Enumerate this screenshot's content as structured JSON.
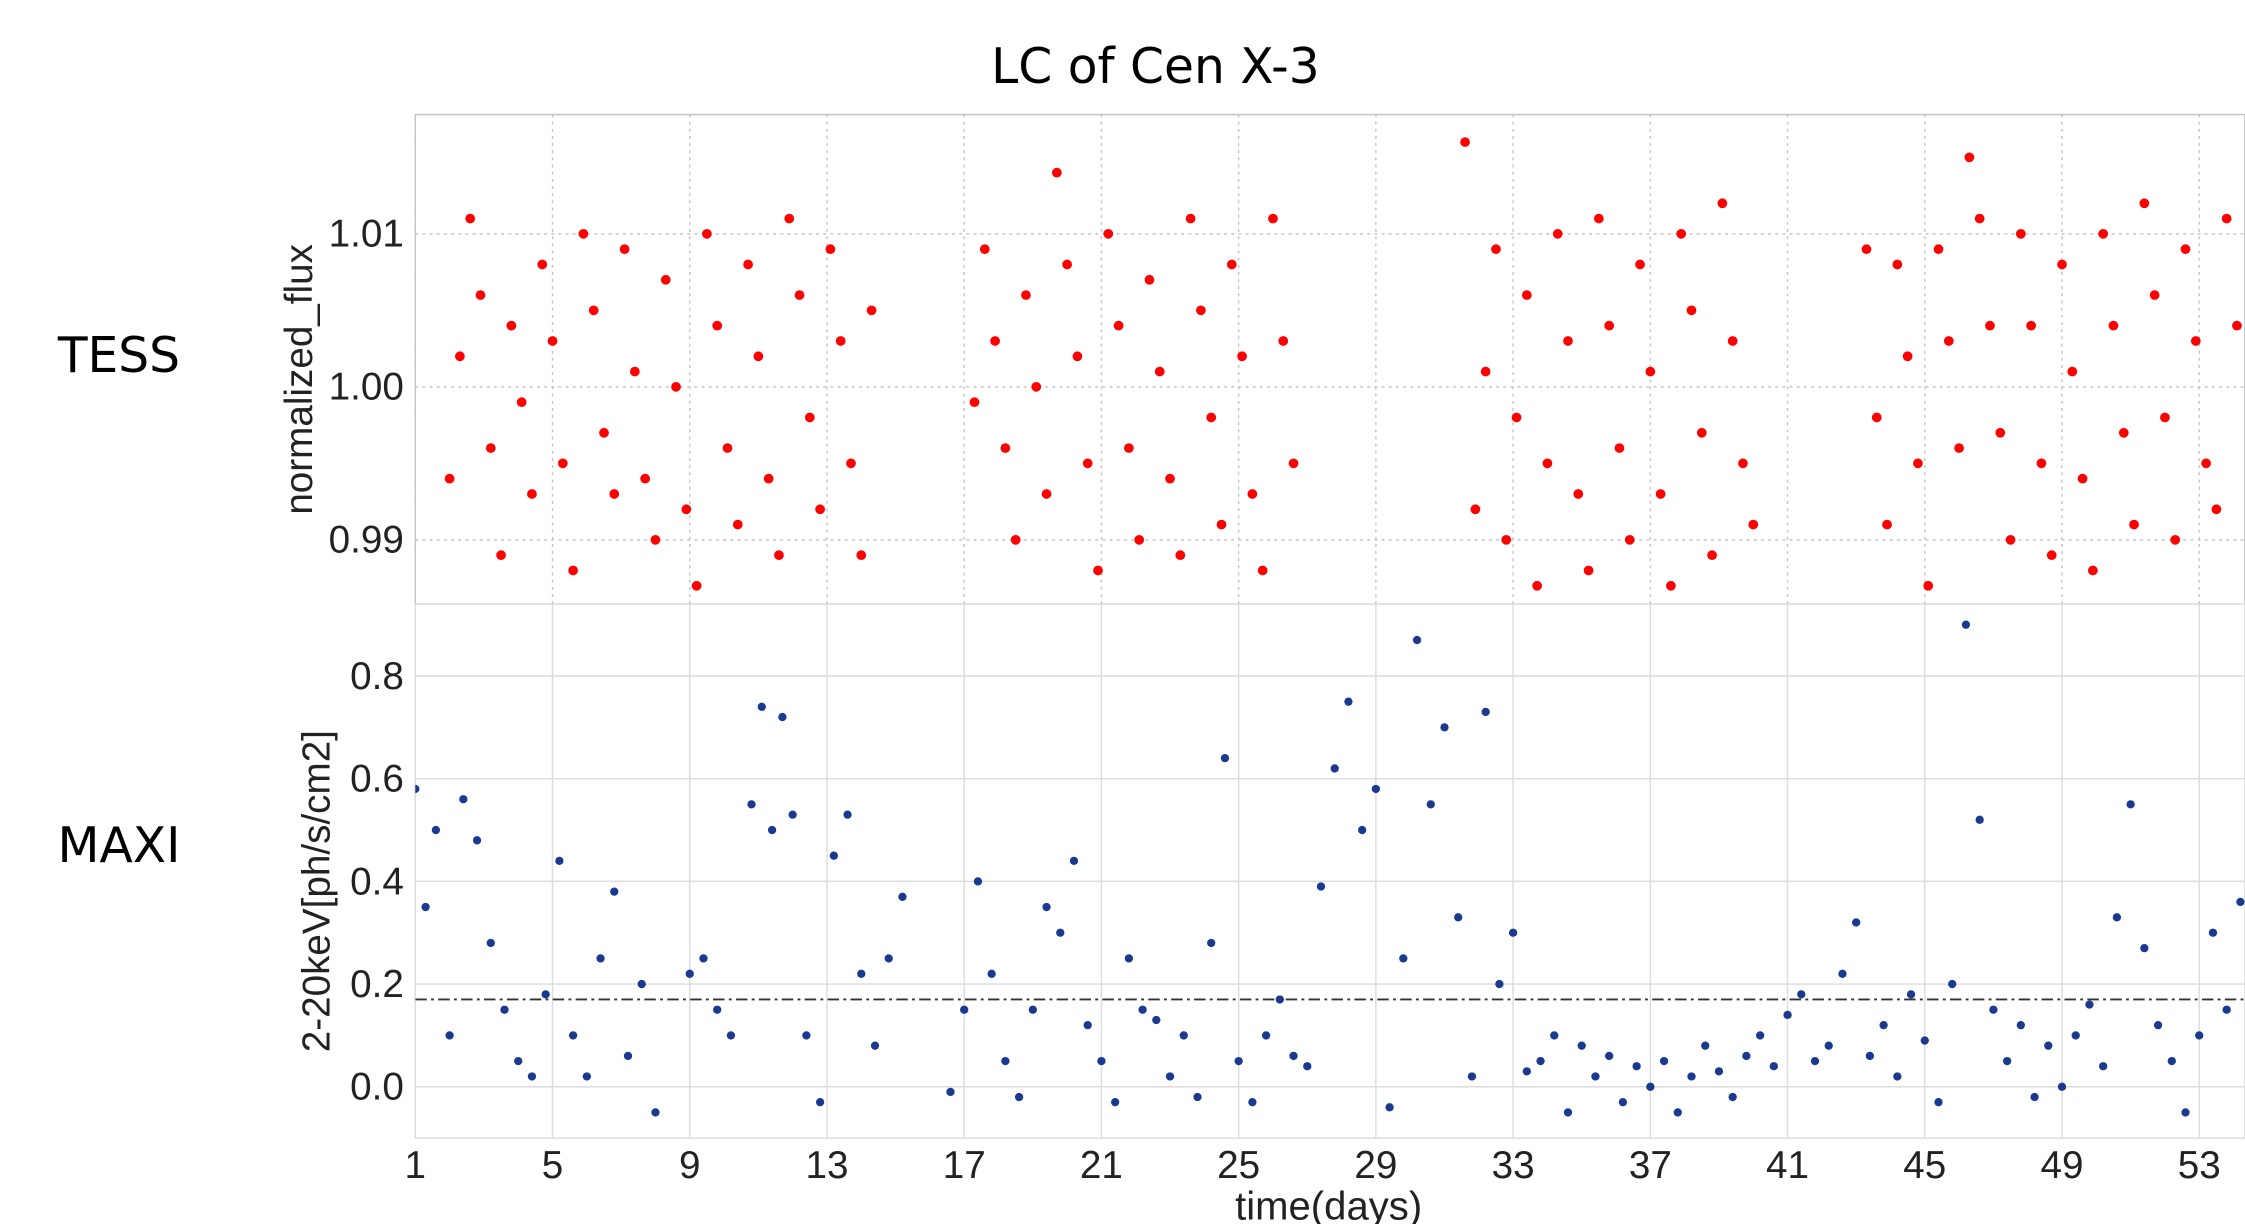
{
  "title": "LC of Cen X-3",
  "xlabel": "time(days)",
  "chart_data": [
    {
      "type": "scatter",
      "label": "TESS",
      "ylabel": "normalized_flux",
      "color": "#ff0000",
      "grid": "dotted",
      "xlim": [
        1,
        54.33
      ],
      "xticks": [
        1,
        5,
        9,
        13,
        17,
        21,
        25,
        29,
        33,
        37,
        41,
        45,
        49,
        53
      ],
      "ylim": [
        0.9858,
        1.0178
      ],
      "yticks": [
        0.99,
        {
          "value": 1,
          "label": "1.00"
        },
        1.01
      ],
      "x": [
        2.0,
        2.3,
        2.6,
        2.9,
        3.2,
        3.5,
        3.8,
        4.1,
        4.4,
        4.7,
        5.0,
        5.3,
        5.6,
        5.9,
        6.2,
        6.5,
        6.8,
        7.1,
        7.4,
        7.7,
        8.0,
        8.3,
        8.6,
        8.9,
        9.2,
        9.5,
        9.8,
        10.1,
        10.4,
        10.7,
        11.0,
        11.3,
        11.6,
        11.9,
        12.2,
        12.5,
        12.8,
        13.1,
        13.4,
        13.7,
        14.0,
        14.3,
        17.3,
        17.6,
        17.9,
        18.2,
        18.5,
        18.8,
        19.1,
        19.4,
        19.7,
        20.0,
        20.3,
        20.6,
        20.9,
        21.2,
        21.5,
        21.8,
        22.1,
        22.4,
        22.7,
        23.0,
        23.3,
        23.6,
        23.9,
        24.2,
        24.5,
        24.8,
        25.1,
        25.4,
        25.7,
        26.0,
        26.3,
        26.6,
        31.6,
        31.9,
        32.2,
        32.5,
        32.8,
        33.1,
        33.4,
        33.7,
        34.0,
        34.3,
        34.6,
        34.9,
        35.2,
        35.5,
        35.8,
        36.1,
        36.4,
        36.7,
        37.0,
        37.3,
        37.6,
        37.9,
        38.2,
        38.5,
        38.8,
        39.1,
        39.4,
        39.7,
        40.0,
        43.3,
        43.6,
        43.9,
        44.2,
        44.5,
        44.8,
        45.1,
        45.4,
        45.7,
        46.0,
        46.3,
        46.6,
        46.9,
        47.2,
        47.5,
        47.8,
        48.1,
        48.4,
        48.7,
        49.0,
        49.3,
        49.6,
        49.9,
        50.2,
        50.5,
        50.8,
        51.1,
        51.4,
        51.7,
        52.0,
        52.3,
        52.6,
        52.9,
        53.2,
        53.5,
        53.8,
        54.1
      ],
      "values": [
        0.994,
        1.002,
        1.011,
        1.006,
        0.996,
        0.989,
        1.004,
        0.999,
        0.993,
        1.008,
        1.003,
        0.995,
        0.988,
        1.01,
        1.005,
        0.997,
        0.993,
        1.009,
        1.001,
        0.994,
        0.99,
        1.007,
        1.0,
        0.992,
        0.987,
        1.01,
        1.004,
        0.996,
        0.991,
        1.008,
        1.002,
        0.994,
        0.989,
        1.011,
        1.006,
        0.998,
        0.992,
        1.009,
        1.003,
        0.995,
        0.989,
        1.005,
        0.999,
        1.009,
        1.003,
        0.996,
        0.99,
        1.006,
        1.0,
        0.993,
        1.014,
        1.008,
        1.002,
        0.995,
        0.988,
        1.01,
        1.004,
        0.996,
        0.99,
        1.007,
        1.001,
        0.994,
        0.989,
        1.011,
        1.005,
        0.998,
        0.991,
        1.008,
        1.002,
        0.993,
        0.988,
        1.011,
        1.003,
        0.995,
        1.016,
        0.992,
        1.001,
        1.009,
        0.99,
        0.998,
        1.006,
        0.987,
        0.995,
        1.01,
        1.003,
        0.993,
        0.988,
        1.011,
        1.004,
        0.996,
        0.99,
        1.008,
        1.001,
        0.993,
        0.987,
        1.01,
        1.005,
        0.997,
        0.989,
        1.012,
        1.003,
        0.995,
        0.991,
        1.009,
        0.998,
        0.991,
        1.008,
        1.002,
        0.995,
        0.987,
        1.009,
        1.003,
        0.996,
        1.015,
        1.011,
        1.004,
        0.997,
        0.99,
        1.01,
        1.004,
        0.995,
        0.989,
        1.008,
        1.001,
        0.994,
        0.988,
        1.01,
        1.004,
        0.997,
        0.991,
        1.012,
        1.006,
        0.998,
        0.99,
        1.009,
        1.003,
        0.995,
        0.992,
        1.011,
        1.004
      ]
    },
    {
      "type": "scatter",
      "label": "MAXI",
      "ylabel": "2-20keV[ph/s/cm2]",
      "color": "#1a3a8f",
      "grid": "solid",
      "hline": 0.17,
      "xlim": [
        1,
        54.33
      ],
      "xticks": [
        1,
        5,
        9,
        13,
        17,
        21,
        25,
        29,
        33,
        37,
        41,
        45,
        49,
        53
      ],
      "ylim": [
        -0.1,
        0.94
      ],
      "yticks": [
        {
          "value": 0,
          "label": "0.0"
        },
        0.2,
        0.4,
        0.6,
        0.8
      ],
      "x": [
        1.0,
        1.3,
        1.6,
        2.0,
        2.4,
        2.8,
        3.2,
        3.6,
        4.0,
        4.4,
        4.8,
        5.2,
        5.6,
        6.0,
        6.4,
        6.8,
        7.2,
        7.6,
        8.0,
        9.0,
        9.4,
        9.8,
        10.2,
        10.8,
        11.1,
        11.4,
        11.7,
        12.0,
        12.4,
        12.8,
        13.2,
        13.6,
        14.0,
        14.4,
        14.8,
        15.2,
        16.6,
        17.0,
        17.4,
        17.8,
        18.2,
        18.6,
        19.0,
        19.4,
        19.8,
        20.2,
        20.6,
        21.0,
        21.4,
        21.8,
        22.2,
        22.6,
        23.0,
        23.4,
        23.8,
        24.2,
        24.6,
        25.0,
        25.4,
        25.8,
        26.2,
        26.6,
        27.0,
        27.4,
        27.8,
        28.2,
        28.6,
        29.0,
        29.4,
        29.8,
        30.2,
        30.6,
        31.0,
        31.4,
        31.8,
        32.2,
        32.6,
        33.0,
        33.4,
        33.8,
        34.2,
        34.6,
        35.0,
        35.4,
        35.8,
        36.2,
        36.6,
        37.0,
        37.4,
        37.8,
        38.2,
        38.6,
        39.0,
        39.4,
        39.8,
        40.2,
        40.6,
        41.0,
        41.4,
        41.8,
        42.2,
        42.6,
        43.0,
        43.4,
        43.8,
        44.2,
        44.6,
        45.0,
        45.4,
        45.8,
        46.2,
        46.6,
        47.0,
        47.4,
        47.8,
        48.2,
        48.6,
        49.0,
        49.4,
        49.8,
        50.2,
        50.6,
        51.0,
        51.4,
        51.8,
        52.2,
        52.6,
        53.0,
        53.4,
        53.8,
        54.2
      ],
      "values": [
        0.58,
        0.35,
        0.5,
        0.1,
        0.56,
        0.48,
        0.28,
        0.15,
        0.05,
        0.02,
        0.18,
        0.44,
        0.1,
        0.02,
        0.25,
        0.38,
        0.06,
        0.2,
        -0.05,
        0.22,
        0.25,
        0.15,
        0.1,
        0.55,
        0.74,
        0.5,
        0.72,
        0.53,
        0.1,
        -0.03,
        0.45,
        0.53,
        0.22,
        0.08,
        0.25,
        0.37,
        -0.01,
        0.15,
        0.4,
        0.22,
        0.05,
        -0.02,
        0.15,
        0.35,
        0.3,
        0.44,
        0.12,
        0.05,
        -0.03,
        0.25,
        0.15,
        0.13,
        0.02,
        0.1,
        -0.02,
        0.28,
        0.64,
        0.05,
        -0.03,
        0.1,
        0.17,
        0.06,
        0.04,
        0.39,
        0.62,
        0.75,
        0.5,
        0.58,
        -0.04,
        0.25,
        0.87,
        0.55,
        0.7,
        0.33,
        0.02,
        0.73,
        0.2,
        0.3,
        0.03,
        0.05,
        0.1,
        -0.05,
        0.08,
        0.02,
        0.06,
        -0.03,
        0.04,
        0.0,
        0.05,
        -0.05,
        0.02,
        0.08,
        0.03,
        -0.02,
        0.06,
        0.1,
        0.04,
        0.14,
        0.18,
        0.05,
        0.08,
        0.22,
        0.32,
        0.06,
        0.12,
        0.02,
        0.18,
        0.09,
        -0.03,
        0.2,
        0.9,
        0.52,
        0.15,
        0.05,
        0.12,
        -0.02,
        0.08,
        0.0,
        0.1,
        0.16,
        0.04,
        0.33,
        0.55,
        0.27,
        0.12,
        0.05,
        -0.05,
        0.1,
        0.3,
        0.15,
        0.36
      ]
    }
  ]
}
